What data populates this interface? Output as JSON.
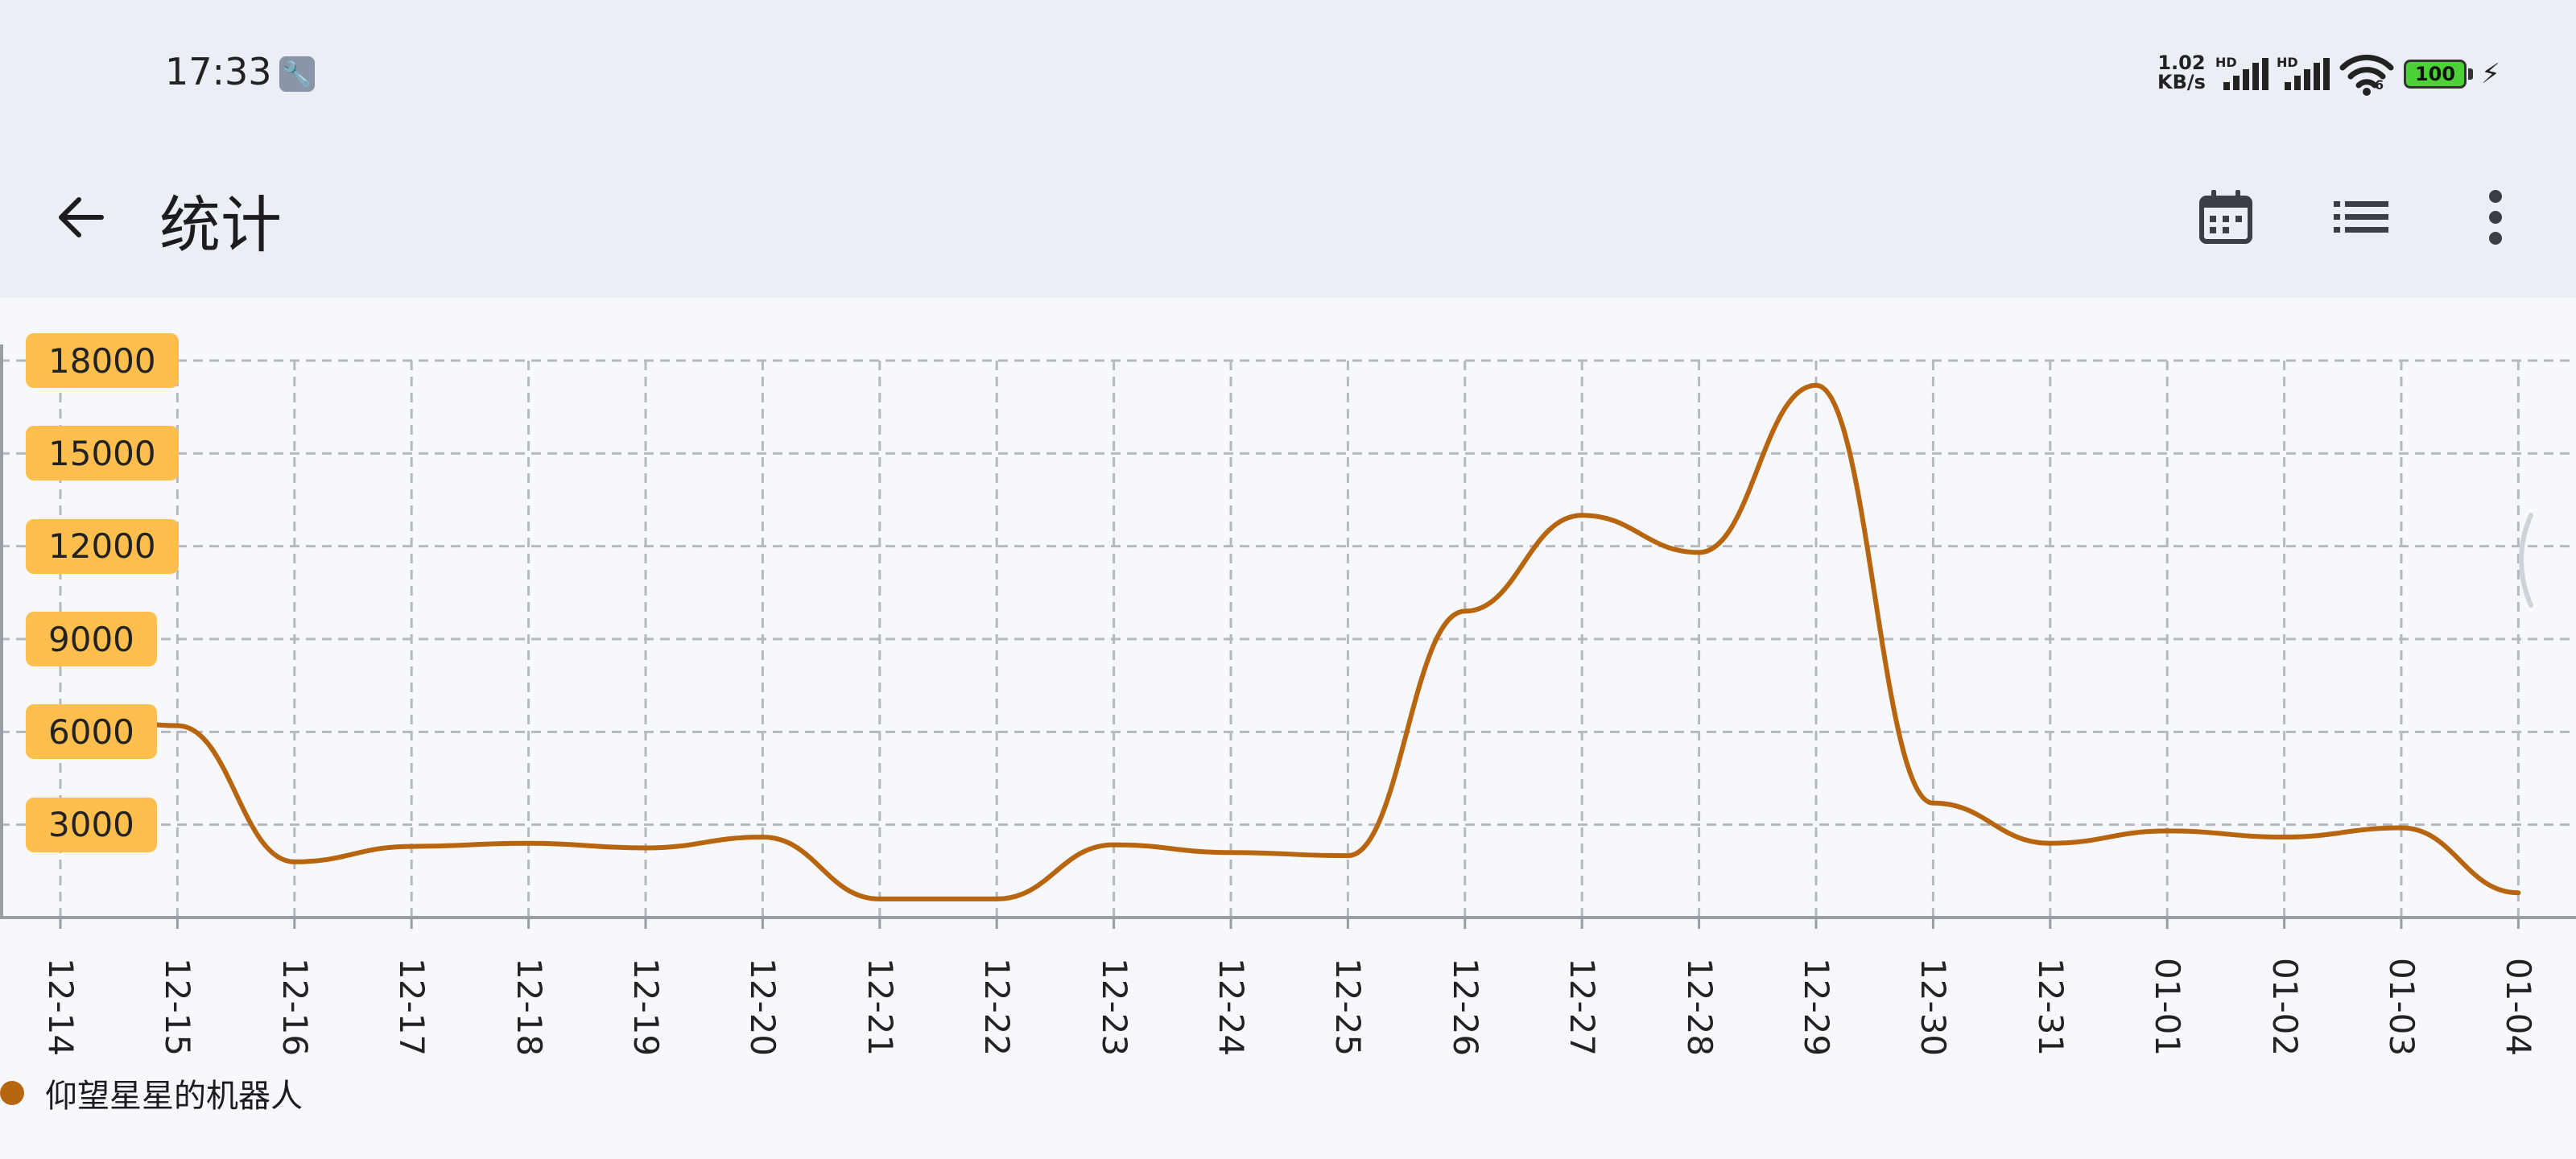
{
  "status_bar": {
    "time": "17:33",
    "wrench_icon": "wrench-icon",
    "net_speed_value": "1.02",
    "net_speed_unit": "KB/s",
    "hd_label_1": "HD",
    "hd_label_2": "HD",
    "wifi_sub": "6",
    "battery": "100"
  },
  "app_bar": {
    "title": "统计",
    "back_icon": "arrow-left-icon",
    "calendar_icon": "calendar-icon",
    "list_icon": "list-icon",
    "more_icon": "more-vertical-icon"
  },
  "chart_data": {
    "type": "line",
    "title": "",
    "xlabel": "",
    "ylabel": "",
    "categories": [
      "12-14",
      "12-15",
      "12-16",
      "12-17",
      "12-18",
      "12-19",
      "12-20",
      "12-21",
      "12-22",
      "12-23",
      "12-24",
      "12-25",
      "12-26",
      "12-27",
      "12-28",
      "12-29",
      "12-30",
      "12-31",
      "01-01",
      "01-02",
      "01-03",
      "01-04"
    ],
    "y_ticks": [
      "3000",
      "6000",
      "9000",
      "12000",
      "15000",
      "18000"
    ],
    "ylim": [
      0,
      18000
    ],
    "grid": true,
    "legend_position": "bottom-left",
    "series": [
      {
        "name": "仰望星星的机器人",
        "color": "#b8650f",
        "values": [
          6700,
          6200,
          1800,
          2300,
          2400,
          2250,
          2600,
          600,
          600,
          2350,
          2100,
          2000,
          9900,
          13000,
          11800,
          17200,
          3700,
          2400,
          2800,
          2600,
          2900,
          800
        ]
      }
    ]
  }
}
